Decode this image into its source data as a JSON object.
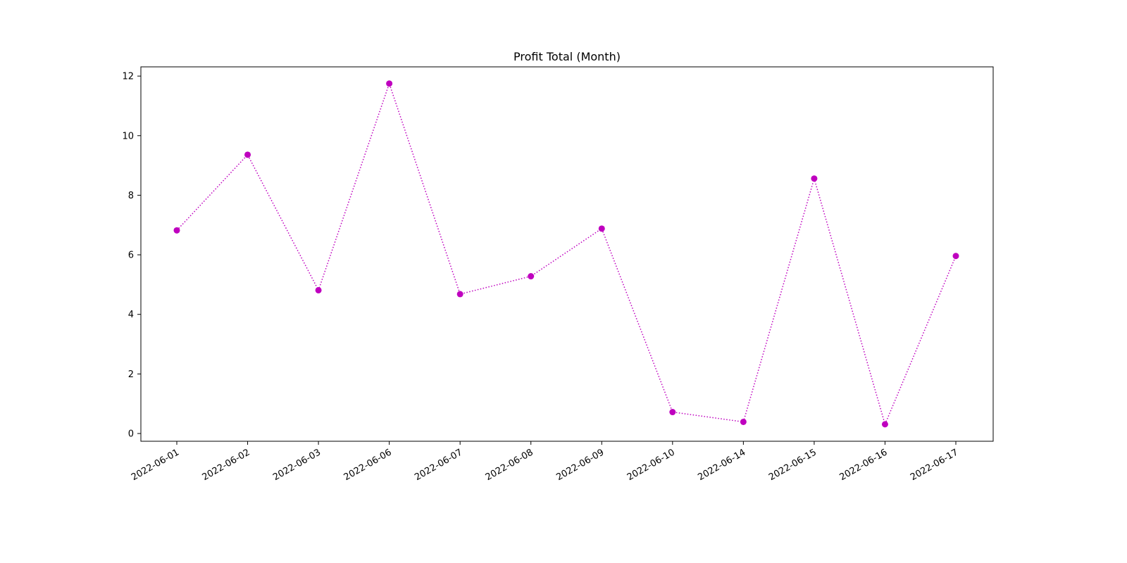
{
  "chart_data": {
    "type": "line",
    "title": "Profit Total (Month)",
    "xlabel": "",
    "ylabel": "",
    "categories": [
      "2022-06-01",
      "2022-06-02",
      "2022-06-03",
      "2022-06-06",
      "2022-06-07",
      "2022-06-08",
      "2022-06-09",
      "2022-06-10",
      "2022-06-14",
      "2022-06-15",
      "2022-06-16",
      "2022-06-17"
    ],
    "series": [
      {
        "values": [
          6.82,
          9.36,
          4.81,
          11.75,
          4.68,
          5.28,
          6.88,
          0.72,
          0.39,
          8.56,
          0.31,
          5.96
        ],
        "color": "#bf00bf",
        "line_style": "dotted",
        "marker": "circle"
      }
    ],
    "ylim": [
      -0.26,
      12.31
    ],
    "yticks": [
      0,
      2,
      4,
      6,
      8,
      10,
      12
    ],
    "grid": false,
    "legend": "none"
  }
}
